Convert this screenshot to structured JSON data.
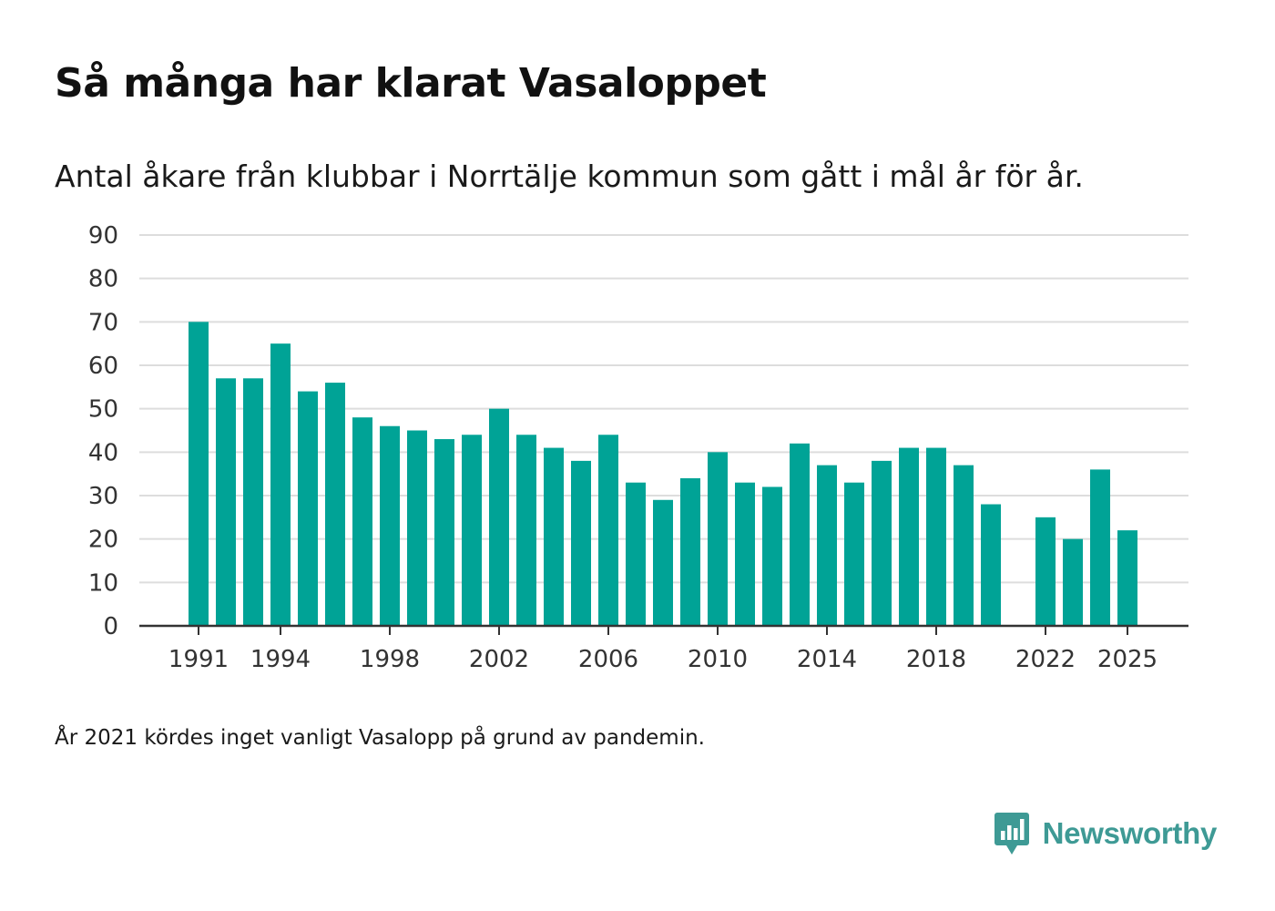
{
  "title": "Så många har klarat Vasaloppet",
  "subtitle": "Antal åkare från klubbar i Norrtälje kommun som gått i mål år för år.",
  "note": "År 2021 kördes inget vanligt Vasalopp på grund av pandemin.",
  "brand": {
    "name": "Newsworthy",
    "icon": "newsworthy-logo-icon",
    "color": "#3e9a95"
  },
  "colors": {
    "bar": "#00a396",
    "grid": "#dddddd",
    "axis": "#333333"
  },
  "chart_data": {
    "type": "bar",
    "title": "Så många har klarat Vasaloppet",
    "subtitle": "Antal åkare från klubbar i Norrtälje kommun som gått i mål år för år.",
    "xlabel": "",
    "ylabel": "",
    "ylim": [
      0,
      90
    ],
    "yticks": [
      0,
      10,
      20,
      30,
      40,
      50,
      60,
      70,
      80,
      90
    ],
    "xtick_labels": [
      "1991",
      "1994",
      "1998",
      "2002",
      "2006",
      "2010",
      "2014",
      "2018",
      "2022",
      "2025"
    ],
    "grid": true,
    "categories": [
      1991,
      1992,
      1993,
      1994,
      1995,
      1996,
      1997,
      1998,
      1999,
      2000,
      2001,
      2002,
      2003,
      2004,
      2005,
      2006,
      2007,
      2008,
      2009,
      2010,
      2011,
      2012,
      2013,
      2014,
      2015,
      2016,
      2017,
      2018,
      2019,
      2020,
      2021,
      2022,
      2023,
      2024,
      2025
    ],
    "values": [
      70,
      57,
      57,
      65,
      54,
      56,
      48,
      46,
      45,
      43,
      44,
      50,
      44,
      41,
      38,
      44,
      33,
      29,
      34,
      40,
      33,
      32,
      42,
      37,
      33,
      38,
      41,
      41,
      37,
      28,
      null,
      25,
      20,
      36,
      22
    ]
  }
}
